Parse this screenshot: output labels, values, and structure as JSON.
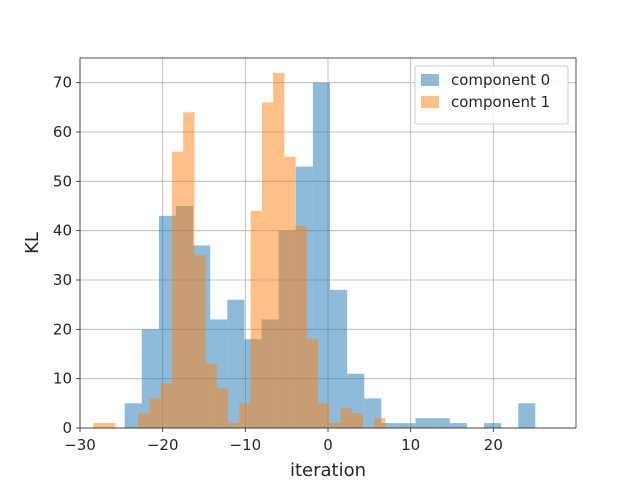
{
  "chart_data": {
    "type": "bar",
    "subtype": "overlapping-histogram",
    "title": "",
    "xlabel": "iteration",
    "ylabel": "KL",
    "xlim": [
      -30,
      30
    ],
    "ylim": [
      0,
      75
    ],
    "xticks": [
      -30,
      -20,
      -10,
      0,
      10,
      20
    ],
    "yticks": [
      0,
      10,
      20,
      30,
      40,
      50,
      60,
      70
    ],
    "grid": true,
    "legend": "top-right",
    "series": [
      {
        "name": "component 0",
        "color": "#1f77b4",
        "opacity": 0.5,
        "bin_start": -24.6,
        "bin_width": 2.07,
        "counts": [
          5,
          20,
          43,
          45,
          37,
          22,
          26,
          18,
          22,
          40,
          53,
          70,
          28,
          11,
          6,
          1,
          1,
          2,
          2,
          1,
          0,
          1,
          0,
          5
        ]
      },
      {
        "name": "component 1",
        "color": "#ff7f0e",
        "opacity": 0.5,
        "bin_start": -28.4,
        "bin_width": 1.36,
        "counts": [
          1,
          1,
          0,
          0,
          3,
          6,
          9,
          56,
          64,
          35,
          13,
          8,
          1,
          5,
          44,
          66,
          72,
          55,
          41,
          18,
          5,
          1,
          4,
          3,
          0,
          2
        ]
      }
    ]
  }
}
